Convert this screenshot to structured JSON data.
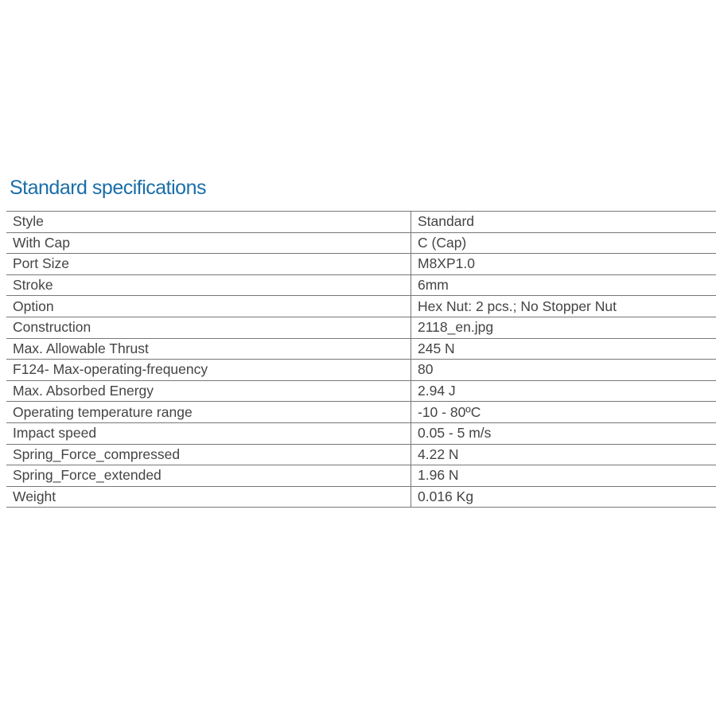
{
  "title": "Standard specifications",
  "colors": {
    "title": "#1a6ea8",
    "text": "#444444",
    "rule": "#777777"
  },
  "rows": [
    {
      "label": "Style",
      "value": "Standard"
    },
    {
      "label": "With Cap",
      "value": "C (Cap)"
    },
    {
      "label": "Port Size",
      "value": "M8XP1.0"
    },
    {
      "label": "Stroke",
      "value": "6mm"
    },
    {
      "label": "Option",
      "value": "Hex Nut: 2 pcs.; No Stopper Nut"
    },
    {
      "label": "Construction",
      "value": "2118_en.jpg"
    },
    {
      "label": "Max. Allowable Thrust",
      "value": "245 N"
    },
    {
      "label": "F124- Max-operating-frequency",
      "value": "80"
    },
    {
      "label": "Max. Absorbed Energy",
      "value": "2.94 J"
    },
    {
      "label": "Operating temperature range",
      "value": "-10 - 80ºC"
    },
    {
      "label": "Impact speed",
      "value": "0.05 - 5 m/s"
    },
    {
      "label": "Spring_Force_compressed",
      "value": "4.22 N"
    },
    {
      "label": "Spring_Force_extended",
      "value": "1.96 N"
    },
    {
      "label": "Weight",
      "value": "0.016 Kg"
    }
  ]
}
